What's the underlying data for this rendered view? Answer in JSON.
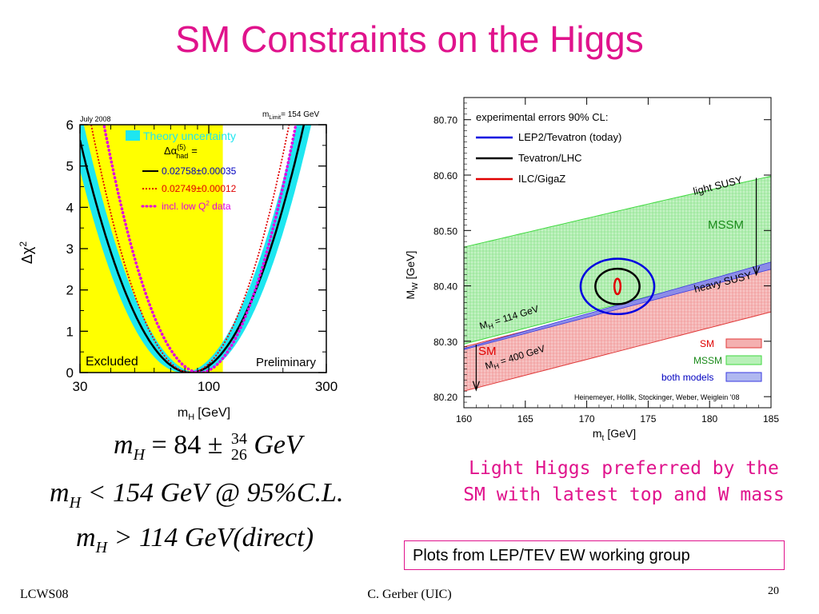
{
  "slide": {
    "title": "SM Constraints on the Higgs",
    "caption_line1": "Light Higgs preferred by the",
    "caption_line2": "SM with latest top and W mass",
    "source_note": "Plots from LEP/TEV EW  working group",
    "footer_left": "LCWS08",
    "footer_center": "C. Gerber (UIC)",
    "footer_right": "20"
  },
  "formulas": {
    "f1_lhs": "m",
    "f1_sub": "H",
    "f1_rhs": "= 84 ±",
    "f1_up": "34",
    "f1_down": "26",
    "f1_unit": "GeV",
    "f2_lhs": "m",
    "f2_sub": "H",
    "f2_rhs": "< 154 GeV @ 95%C.L.",
    "f3_lhs": "m",
    "f3_sub": "H",
    "f3_rhs": "> 114 GeV(direct)"
  },
  "colors": {
    "accent": "#e0138c",
    "excluded": "#ffff00",
    "band": "#1ee6f0",
    "mssm": "#3fd93f",
    "sm": "#e03a3a",
    "lep": "#0000e0",
    "tev": "#000000",
    "ilc": "#e00000"
  },
  "chart_data": [
    {
      "type": "line",
      "stamp_left": "July 2008",
      "stamp_right": "m",
      "stamp_right_sub": "Limit",
      "stamp_right_value": "= 154 GeV",
      "xlabel": "m",
      "xlabel_sub": "H",
      "xlabel_unit": "[GeV]",
      "ylabel": "Δχ",
      "ylabel_sup": "2",
      "x_scale": "log",
      "x_ticks": [
        30,
        100,
        300
      ],
      "xlim": [
        30,
        300
      ],
      "y_ticks": [
        0,
        1,
        2,
        3,
        4,
        5,
        6
      ],
      "ylim": [
        0,
        6
      ],
      "excluded_region": [
        30,
        114
      ],
      "excluded_label": "Excluded",
      "preliminary_label": "Preliminary",
      "legend": {
        "theory": "Theory uncertainty",
        "alpha_label": "Δα",
        "alpha_sup": "(5)",
        "alpha_sub": "had",
        "alpha_eq": "=",
        "series1": "0.02758±0.00035",
        "series2": "0.02749±0.00012",
        "series3": "incl. low Q",
        "series3_sup": "2",
        "series3_tail": " data"
      },
      "series": [
        {
          "center": 84,
          "width": 0.1885,
          "style": "solid",
          "color": "#000000"
        },
        {
          "center": 84,
          "width": 0.164,
          "style": "dotted",
          "color": "#e00000"
        },
        {
          "center": 92,
          "width": 0.159,
          "style": "dots",
          "color": "#e000e0"
        }
      ],
      "theory_band": {
        "center": 84,
        "width": 0.1885,
        "half_spread": 0.03
      }
    },
    {
      "type": "area",
      "xlabel": "m",
      "xlabel_sub": "t",
      "xlabel_unit": "[GeV]",
      "ylabel": "M",
      "ylabel_sub": "W",
      "ylabel_unit": "[GeV]",
      "xlim": [
        160,
        185
      ],
      "ylim": [
        80.18,
        80.74
      ],
      "x_ticks": [
        160,
        165,
        170,
        175,
        180,
        185
      ],
      "y_ticks": [
        80.2,
        80.3,
        80.4,
        80.5,
        80.6,
        80.7
      ],
      "legend_title": "experimental errors 90% CL:",
      "legend": [
        "LEP2/Tevatron (today)",
        "Tevatron/LHC",
        "ILC/GigaZ"
      ],
      "mssm_upper": [
        [
          160,
          80.47
        ],
        [
          176,
          80.553
        ],
        [
          185,
          80.598
        ]
      ],
      "mssm_lower": [
        [
          160,
          80.295
        ],
        [
          185,
          80.438
        ]
      ],
      "sm_upper": [
        [
          160,
          80.29
        ],
        [
          185,
          80.433
        ]
      ],
      "sm_lower": [
        [
          160,
          80.21
        ],
        [
          185,
          80.353
        ]
      ],
      "ellipses": [
        {
          "cx": 172.5,
          "cy": 80.399,
          "rx": 3.0,
          "ry": 0.05
        },
        {
          "cx": 172.5,
          "cy": 80.399,
          "rx": 1.8,
          "ry": 0.032
        },
        {
          "cx": 172.5,
          "cy": 80.399,
          "rx": 0.25,
          "ry": 0.014
        }
      ],
      "labels": {
        "light_susy": "light SUSY",
        "mssm": "MSSM",
        "heavy_susy": "heavy SUSY",
        "mh114": "M",
        "mh114_sub": "H",
        "mh114_val": " = 114 GeV",
        "mh400": "M",
        "mh400_sub": "H",
        "mh400_val": " = 400 GeV",
        "sm": "SM",
        "credit": "Heinemeyer, Hollik, Stockinger, Weber, Weiglein '08"
      },
      "bottom_legend": [
        "SM",
        "MSSM",
        "both models"
      ]
    }
  ]
}
